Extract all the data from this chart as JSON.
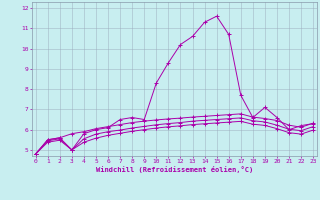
{
  "xlabel": "Windchill (Refroidissement éolien,°C)",
  "background_color": "#c8eef0",
  "line_color": "#aa00aa",
  "grid_color": "#99aabb",
  "xticks": [
    0,
    1,
    2,
    3,
    4,
    5,
    6,
    7,
    8,
    9,
    10,
    11,
    12,
    13,
    14,
    15,
    16,
    17,
    18,
    19,
    20,
    21,
    22,
    23
  ],
  "yticks": [
    5,
    6,
    7,
    8,
    9,
    10,
    11,
    12
  ],
  "xlim": [
    -0.3,
    23.3
  ],
  "ylim": [
    4.7,
    12.3
  ],
  "series": [
    {
      "x": [
        0,
        1,
        2,
        3,
        4,
        5,
        6,
        7,
        8,
        9,
        10,
        11,
        12,
        13,
        14,
        15,
        16,
        17,
        18,
        19,
        20,
        21,
        22,
        23
      ],
      "y": [
        4.8,
        5.5,
        5.6,
        5.0,
        5.8,
        6.0,
        6.1,
        6.5,
        6.6,
        6.5,
        8.3,
        9.3,
        10.2,
        10.6,
        11.3,
        11.6,
        10.7,
        7.7,
        6.6,
        7.1,
        6.6,
        6.0,
        6.2,
        6.3
      ]
    },
    {
      "x": [
        0,
        1,
        2,
        3,
        4,
        5,
        6,
        7,
        8,
        9,
        10,
        11,
        12,
        13,
        14,
        15,
        16,
        17,
        18,
        19,
        20,
        21,
        22,
        23
      ],
      "y": [
        4.8,
        5.5,
        5.6,
        5.8,
        5.9,
        6.05,
        6.15,
        6.25,
        6.35,
        6.42,
        6.48,
        6.53,
        6.57,
        6.62,
        6.66,
        6.7,
        6.74,
        6.78,
        6.62,
        6.55,
        6.45,
        6.22,
        6.12,
        6.32
      ]
    },
    {
      "x": [
        0,
        1,
        2,
        3,
        4,
        5,
        6,
        7,
        8,
        9,
        10,
        11,
        12,
        13,
        14,
        15,
        16,
        17,
        18,
        19,
        20,
        21,
        22,
        23
      ],
      "y": [
        4.8,
        5.45,
        5.55,
        5.0,
        5.55,
        5.78,
        5.9,
        5.98,
        6.08,
        6.16,
        6.24,
        6.3,
        6.35,
        6.42,
        6.46,
        6.5,
        6.54,
        6.58,
        6.44,
        6.38,
        6.22,
        6.02,
        5.95,
        6.15
      ]
    },
    {
      "x": [
        0,
        1,
        2,
        3,
        4,
        5,
        6,
        7,
        8,
        9,
        10,
        11,
        12,
        13,
        14,
        15,
        16,
        17,
        18,
        19,
        20,
        21,
        22,
        23
      ],
      "y": [
        4.8,
        5.38,
        5.48,
        5.0,
        5.38,
        5.58,
        5.72,
        5.82,
        5.92,
        6.0,
        6.08,
        6.14,
        6.19,
        6.25,
        6.29,
        6.33,
        6.37,
        6.41,
        6.27,
        6.21,
        6.05,
        5.85,
        5.78,
        5.98
      ]
    }
  ]
}
